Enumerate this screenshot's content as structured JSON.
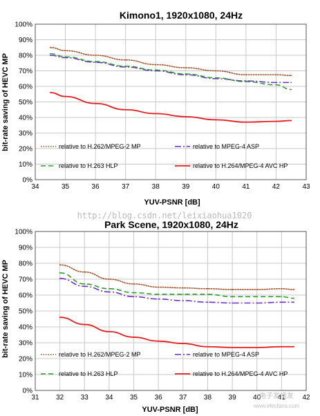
{
  "watermark": {
    "text": "http://blog.csdn.net/leixiaohua1020",
    "logo_text": "电子发烧友",
    "logo_url": "www.elecfans.com"
  },
  "colors": {
    "mpeg2": "#a0522d",
    "asp": "#6a2dc8",
    "h263": "#2e9a2e",
    "avc": "#e41a1c"
  },
  "chart_data": [
    {
      "type": "line",
      "title": "Kimono1, 1920x1080, 24Hz",
      "xlabel": "YUV-PSNR [dB]",
      "ylabel": "bit-rate saving of HEVC MP",
      "xlim": [
        34,
        43
      ],
      "ylim": [
        0,
        100
      ],
      "xticks": [
        "34",
        "35",
        "36",
        "37",
        "38",
        "39",
        "40",
        "41",
        "42",
        "43"
      ],
      "yticks": [
        "0%",
        "10%",
        "20%",
        "30%",
        "40%",
        "50%",
        "60%",
        "70%",
        "80%",
        "90%",
        "100%"
      ],
      "grid": true,
      "legend": "bottom",
      "series": [
        {
          "name": "relative to H.262/MPEG-2 MP",
          "style": "dotted",
          "color": "#a0522d",
          "x": [
            34.5,
            35,
            36,
            37,
            38,
            39,
            40,
            41,
            42,
            42.5
          ],
          "y": [
            85,
            83,
            80,
            77,
            74,
            72,
            70,
            67.5,
            67.5,
            67
          ]
        },
        {
          "name": "relative to MPEG-4 ASP",
          "style": "dashdot",
          "color": "#6a2dc8",
          "x": [
            34.5,
            35,
            36,
            37,
            38,
            39,
            40,
            41,
            42,
            42.5
          ],
          "y": [
            80,
            78.5,
            75.5,
            72.5,
            70,
            67.5,
            65,
            63.5,
            62.5,
            62.5
          ]
        },
        {
          "name": "relative to H.263 HLP",
          "style": "dashed",
          "color": "#2e9a2e",
          "x": [
            34.5,
            35,
            36,
            37,
            38,
            39,
            40,
            41,
            42,
            42.5
          ],
          "y": [
            81,
            79,
            76,
            73,
            70.5,
            68,
            65.5,
            63,
            61,
            58
          ]
        },
        {
          "name": "relative to H.264/MPEG-4 AVC HP",
          "style": "solid",
          "color": "#e41a1c",
          "x": [
            34.5,
            35,
            36,
            37,
            38,
            39,
            40,
            41,
            42,
            42.5
          ],
          "y": [
            56,
            53.5,
            49,
            45,
            42.5,
            40.5,
            38.5,
            37,
            37.5,
            38
          ]
        }
      ]
    },
    {
      "type": "line",
      "title": "Park Scene, 1920x1080, 24Hz",
      "xlabel": "YUV-PSNR [dB]",
      "ylabel": "bit-rate saving of HEVC MP",
      "xlim": [
        31,
        42
      ],
      "ylim": [
        0,
        100
      ],
      "xticks": [
        "31",
        "32",
        "33",
        "34",
        "35",
        "36",
        "37",
        "38",
        "39",
        "40",
        "41",
        "42"
      ],
      "yticks": [
        "0%",
        "10%",
        "20%",
        "30%",
        "40%",
        "50%",
        "60%",
        "70%",
        "80%",
        "90%",
        "100%"
      ],
      "grid": true,
      "legend": "bottom",
      "series": [
        {
          "name": "relative to H.262/MPEG-2 MP",
          "style": "dotted",
          "color": "#a0522d",
          "x": [
            32,
            33,
            34,
            35,
            36,
            37,
            38,
            39,
            40,
            41,
            41.5
          ],
          "y": [
            79,
            74.5,
            70,
            67,
            65,
            64.5,
            64,
            63.5,
            63.5,
            64,
            63.5
          ]
        },
        {
          "name": "relative to MPEG-4 ASP",
          "style": "dashdot",
          "color": "#6a2dc8",
          "x": [
            32,
            33,
            34,
            35,
            36,
            37,
            38,
            39,
            40,
            41,
            41.5
          ],
          "y": [
            70.5,
            65.5,
            62,
            59,
            57.5,
            56.5,
            55.5,
            55,
            55,
            55.5,
            55.5
          ]
        },
        {
          "name": "relative to H.263 HLP",
          "style": "dashed",
          "color": "#2e9a2e",
          "x": [
            32,
            33,
            34,
            35,
            36,
            37,
            38,
            39,
            40,
            41,
            41.5
          ],
          "y": [
            74,
            67,
            64,
            61.5,
            60.5,
            60.5,
            60.5,
            59,
            59,
            59,
            58
          ]
        },
        {
          "name": "relative to H.264/MPEG-4 AVC HP",
          "style": "solid",
          "color": "#e41a1c",
          "x": [
            32,
            33,
            34,
            35,
            36,
            37,
            38,
            39,
            40,
            41,
            41.5
          ],
          "y": [
            46,
            41.5,
            37,
            33.5,
            31,
            29.5,
            27.5,
            27,
            27,
            27.5,
            27.5
          ]
        }
      ]
    }
  ]
}
